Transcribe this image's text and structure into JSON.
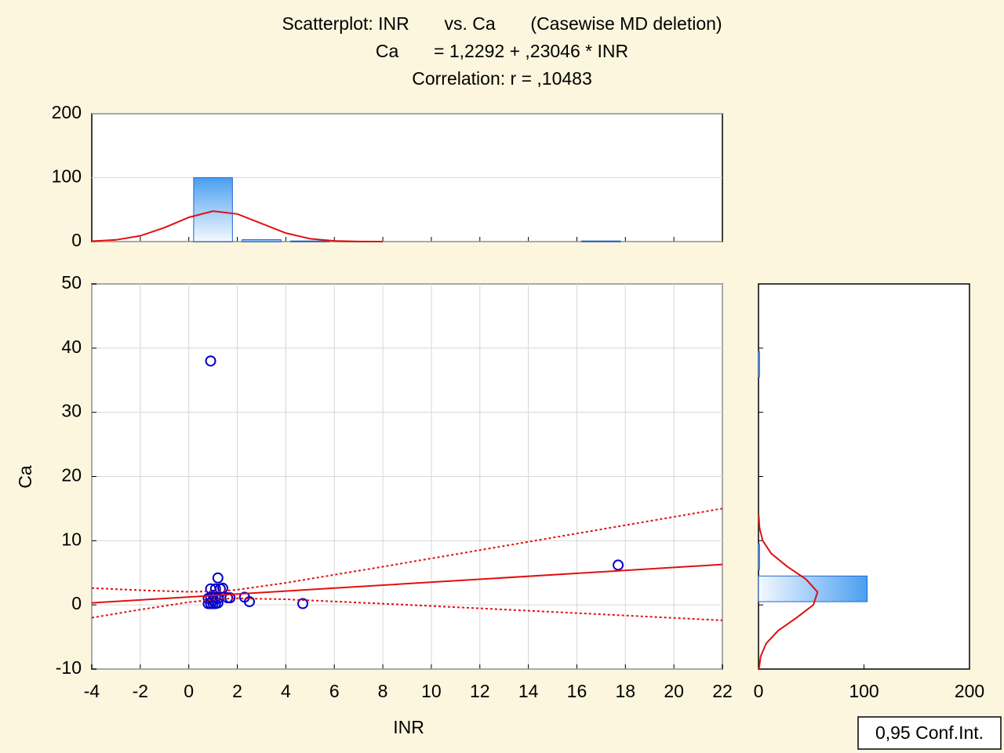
{
  "chart_data": [
    {
      "type": "scatter",
      "title": "Scatterplot: INR       vs. Ca       (Casewise MD deletion)",
      "subtitle": "Ca       = 1,2292 + ,23046 * INR",
      "annotation": "Correlation: r = ,10483",
      "x_label": "INR",
      "y_label": "Ca",
      "xlim": [
        -4,
        22
      ],
      "ylim": [
        -10,
        50
      ],
      "xticks": [
        -4,
        -2,
        0,
        2,
        4,
        6,
        8,
        10,
        12,
        14,
        16,
        18,
        20,
        22
      ],
      "yticks": [
        -10,
        0,
        10,
        20,
        30,
        40,
        50
      ],
      "grid": true,
      "color": "#0000cc",
      "x": [
        0.9,
        17.7,
        4.7,
        2.5,
        2.3,
        1.7,
        1.6,
        1.2,
        1.4,
        0.8,
        0.9,
        1.0,
        1.1,
        1.2,
        0.8,
        0.9,
        1.0,
        1.1,
        0.9,
        1.3,
        1.2,
        1.0,
        1.1
      ],
      "values": [
        38,
        6.2,
        0.2,
        0.5,
        1.2,
        1.1,
        1.1,
        4.2,
        2.6,
        0.2,
        0.2,
        0.2,
        0.2,
        0.3,
        1.0,
        1.2,
        1.5,
        2.5,
        2.5,
        2.5,
        1.0,
        0.7,
        1.2
      ],
      "fit": {
        "color": "#e01010",
        "x": [
          -4,
          22
        ],
        "values": [
          0.307,
          6.299
        ]
      },
      "confidence": {
        "name": "0,95 Conf.Int.",
        "color": "#e01010",
        "x": [
          -4,
          -2,
          0,
          1.3,
          2,
          4,
          8,
          12,
          16,
          22
        ],
        "upper": [
          2.62,
          2.28,
          2.04,
          2.13,
          2.36,
          3.43,
          5.95,
          8.53,
          11.12,
          15.01
        ],
        "lower": [
          -2.0,
          -0.74,
          0.42,
          0.93,
          1.02,
          0.87,
          0.19,
          -0.54,
          -1.28,
          -2.41
        ]
      }
    },
    {
      "type": "histogram",
      "bins": [
        0,
        2,
        4,
        6,
        8,
        10,
        12,
        14,
        16,
        18
      ],
      "values": [
        100,
        3,
        1,
        0,
        0,
        0,
        0,
        0,
        1
      ],
      "xlim": [
        -4,
        22
      ],
      "ylim": [
        0,
        200
      ],
      "yticks": [
        0,
        100,
        200
      ],
      "grid": true,
      "color": "#4a9ff0",
      "curve": {
        "color": "#e01010",
        "x": [
          -4,
          -3,
          -2,
          -1,
          0,
          1,
          2,
          3,
          4,
          5,
          6,
          7,
          8
        ],
        "values": [
          0.6,
          2.7,
          9.0,
          21.8,
          37.9,
          47.7,
          43.2,
          28.3,
          13.3,
          4.5,
          1.1,
          0.2,
          0.0
        ]
      }
    },
    {
      "type": "histogram",
      "orientation": "horizontal",
      "bins": [
        -10,
        -5,
        0,
        5,
        10,
        15,
        20,
        25,
        30,
        35,
        40,
        45,
        50
      ],
      "values": [
        0,
        0,
        103,
        1,
        0,
        0,
        0,
        0,
        0,
        1,
        0,
        0
      ],
      "xlim": [
        0,
        200
      ],
      "xticks": [
        0,
        100,
        200
      ],
      "ylim": [
        -10,
        50
      ],
      "color": "#4a9ff0",
      "curve": {
        "color": "#e01010",
        "y": [
          -10,
          -8,
          -6,
          -4,
          -2,
          0,
          2,
          4,
          6,
          8,
          10,
          12,
          14
        ],
        "values": [
          0.45,
          2.1,
          7.3,
          18.7,
          36.1,
          52.0,
          56.0,
          45.0,
          27.0,
          12.1,
          4.0,
          1.0,
          0.2
        ]
      }
    }
  ]
}
